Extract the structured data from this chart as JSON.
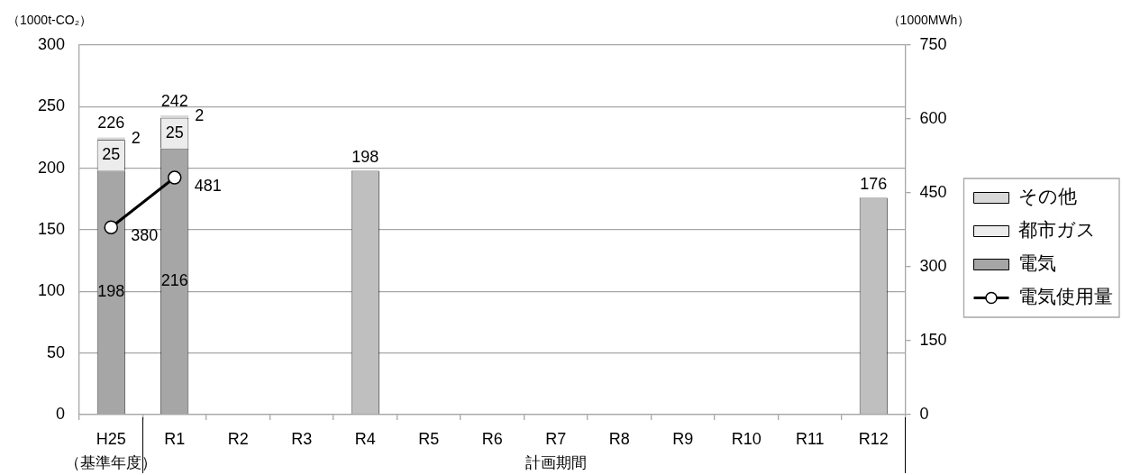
{
  "chart_data": {
    "type": "bar",
    "stacked": true,
    "categories": [
      "H25",
      "R1",
      "R2",
      "R3",
      "R4",
      "R5",
      "R6",
      "R7",
      "R8",
      "R9",
      "R10",
      "R11",
      "R12"
    ],
    "series": [
      {
        "name": "電気",
        "color": "#a6a6a6",
        "values": [
          198,
          216,
          null,
          null,
          null,
          null,
          null,
          null,
          null,
          null,
          null,
          null,
          null
        ]
      },
      {
        "name": "都市ガス",
        "color": "#ececec",
        "values": [
          25,
          25,
          null,
          null,
          null,
          null,
          null,
          null,
          null,
          null,
          null,
          null,
          null
        ]
      },
      {
        "name": "その他",
        "color": "#d9d9d9",
        "values": [
          2,
          2,
          null,
          null,
          null,
          null,
          null,
          null,
          null,
          null,
          null,
          null,
          null
        ]
      },
      {
        "color": "#bfbfbf",
        "values": [
          null,
          null,
          null,
          null,
          198,
          null,
          null,
          null,
          null,
          null,
          null,
          null,
          176
        ]
      },
      {
        "name": "電気使用量",
        "type": "line",
        "axis": "y2",
        "color": "#000000",
        "values": [
          380,
          481,
          null,
          null,
          null,
          null,
          null,
          null,
          null,
          null,
          null,
          null,
          null
        ]
      }
    ],
    "totals": [
      "226",
      "242",
      null,
      null,
      null,
      null,
      null,
      null,
      null,
      null,
      null,
      null,
      null
    ],
    "ylabel": "（1000t-CO₂）",
    "y2label": "（1000MWh）",
    "ylim": [
      0,
      300
    ],
    "yticks": [
      0,
      50,
      100,
      150,
      200,
      250,
      300
    ],
    "y2lim": [
      0,
      750
    ],
    "y2ticks": [
      0,
      150,
      300,
      450,
      600,
      750
    ],
    "grid": "y",
    "legend": "right",
    "marker": "circle",
    "line_style": "solid",
    "data_labels": true,
    "annotations": [
      "（基準年度）",
      "計画期間"
    ]
  }
}
